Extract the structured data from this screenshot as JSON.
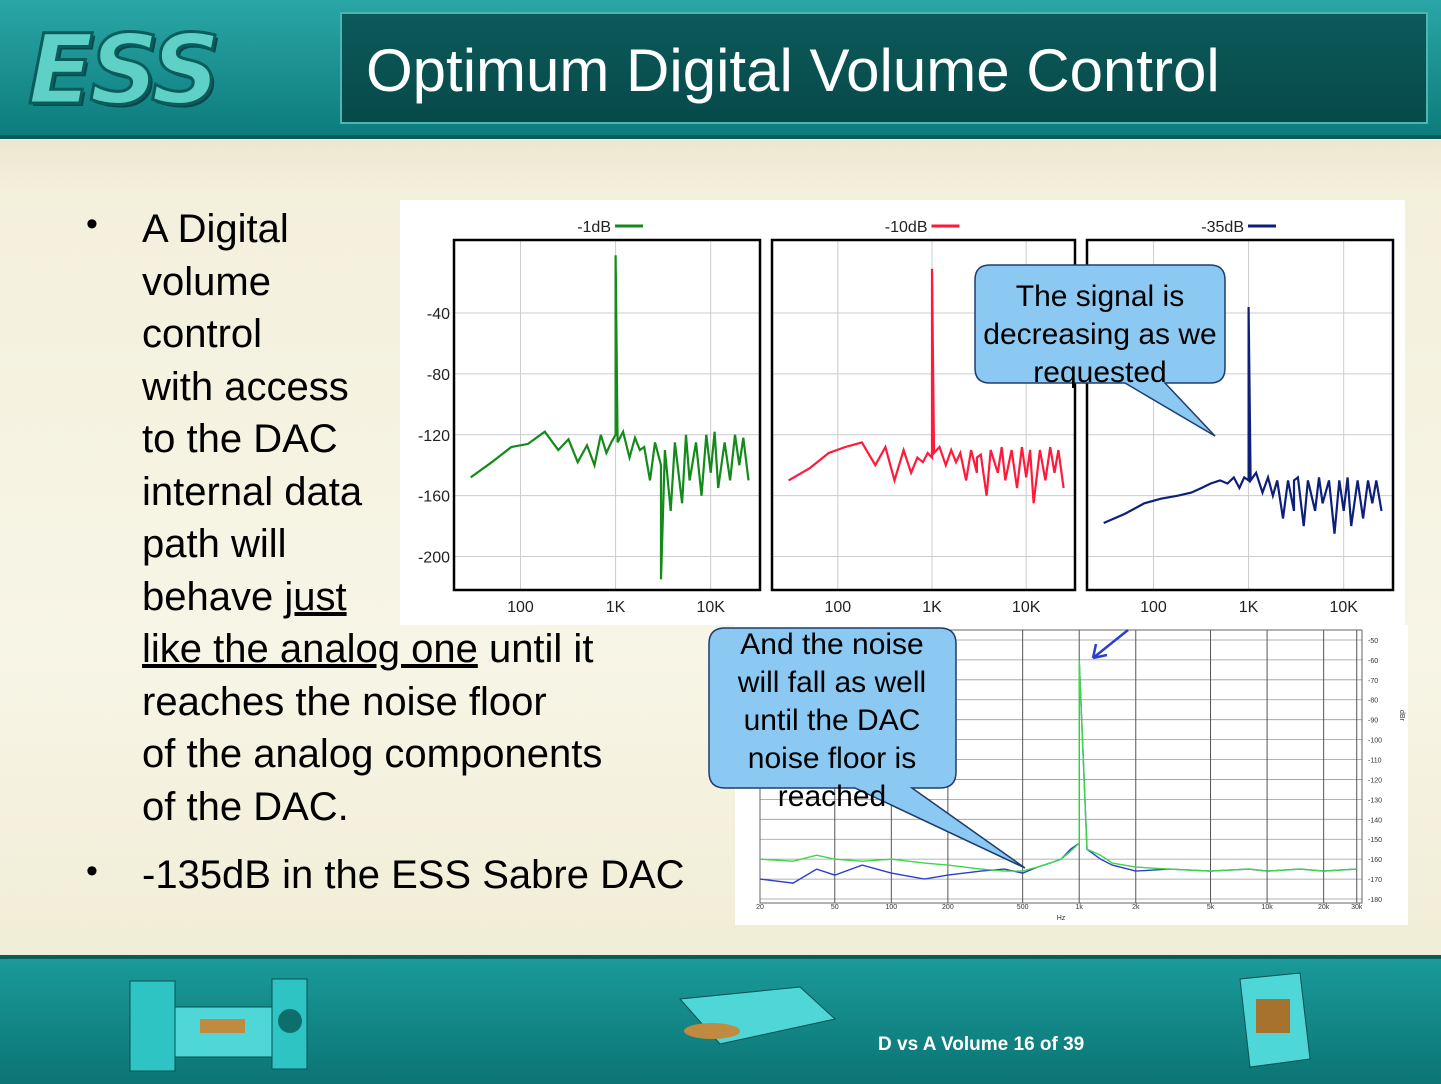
{
  "header": {
    "logo": "ESS",
    "title": "Optimum Digital Volume Control"
  },
  "bullets": [
    {
      "lines": [
        [
          {
            "text": "A Digital"
          }
        ],
        [
          {
            "text": "volume"
          }
        ],
        [
          {
            "text": "control"
          }
        ],
        [
          {
            "text": "with access"
          }
        ],
        [
          {
            "text": "to the DAC"
          }
        ],
        [
          {
            "text": "internal data"
          }
        ],
        [
          {
            "text": "path will"
          }
        ],
        [
          {
            "text": "behave "
          },
          {
            "text": "just",
            "underline": true
          }
        ],
        [
          {
            "text": "like the analog one",
            "underline": true
          },
          {
            "text": " until it"
          }
        ],
        [
          {
            "text": "reaches the noise floor"
          }
        ],
        [
          {
            "text": "of the analog components"
          }
        ],
        [
          {
            "text": "of the DAC."
          }
        ]
      ]
    },
    {
      "lines": [
        [
          {
            "text": "-135dB in the ESS Sabre DAC"
          }
        ]
      ]
    }
  ],
  "callouts": [
    {
      "lines": [
        "The signal is",
        "decreasing as we",
        "requested"
      ]
    },
    {
      "lines": [
        "And the noise",
        "will fall as well",
        "until the DAC",
        "noise floor is",
        "reached"
      ]
    }
  ],
  "footer": {
    "text": "D vs A Volume 16 of 39"
  },
  "chart_data": [
    {
      "type": "line",
      "xscale": "log",
      "grid": true,
      "x": [
        30,
        50,
        80,
        120,
        180,
        250,
        320,
        400,
        500,
        600,
        700,
        800,
        900,
        1000,
        1000,
        1050,
        1200,
        1400,
        1600,
        1800,
        2000,
        2300,
        2600,
        3000,
        3000,
        3300,
        3800,
        4200,
        5000,
        5500,
        6000,
        7000,
        8000,
        9000,
        10000,
        11000,
        12000,
        14000,
        16000,
        18000,
        20000,
        22000,
        25000
      ],
      "series": [
        {
          "name": "-1dB",
          "color": "#138a1a",
          "values": [
            -148,
            -138,
            -128,
            -126,
            -118,
            -130,
            -123,
            -138,
            -127,
            -140,
            -120,
            -132,
            -125,
            -120,
            -2,
            -125,
            -118,
            -135,
            -122,
            -130,
            -128,
            -150,
            -125,
            -140,
            -215,
            -130,
            -170,
            -125,
            -165,
            -120,
            -150,
            -125,
            -160,
            -120,
            -145,
            -118,
            -155,
            -125,
            -150,
            -120,
            -140,
            -122,
            -150
          ]
        }
      ],
      "xlim": [
        20,
        33000
      ],
      "ylim": [
        -222,
        8
      ],
      "xticks": [
        100,
        {
          "value": 1000,
          "label": "1K"
        },
        {
          "value": 10000,
          "label": "10K"
        }
      ],
      "yticks": [
        -40,
        -80,
        -120,
        -160,
        -200
      ]
    },
    {
      "type": "line",
      "xscale": "log",
      "grid": true,
      "x": [
        30,
        50,
        80,
        120,
        180,
        250,
        320,
        400,
        500,
        600,
        700,
        800,
        900,
        1000,
        1000,
        1050,
        1200,
        1400,
        1600,
        1800,
        2000,
        2300,
        2600,
        3000,
        3000,
        3300,
        3800,
        4200,
        5000,
        5500,
        6000,
        7000,
        8000,
        9000,
        10000,
        11000,
        12000,
        14000,
        16000,
        18000,
        20000,
        22000,
        25000
      ],
      "series": [
        {
          "name": "-10dB",
          "color": "#ff1a3c",
          "values": [
            -150,
            -142,
            -132,
            -128,
            -125,
            -140,
            -128,
            -150,
            -130,
            -145,
            -135,
            -138,
            -132,
            -135,
            -11,
            -132,
            -128,
            -140,
            -130,
            -138,
            -132,
            -150,
            -130,
            -145,
            -135,
            -133,
            -160,
            -130,
            -145,
            -128,
            -150,
            -130,
            -155,
            -128,
            -148,
            -130,
            -165,
            -130,
            -150,
            -128,
            -145,
            -130,
            -155
          ]
        }
      ],
      "xlim": [
        20,
        33000
      ],
      "ylim": [
        -222,
        8
      ],
      "xticks": [
        100,
        {
          "value": 1000,
          "label": "1K"
        },
        {
          "value": 10000,
          "label": "10K"
        }
      ]
    },
    {
      "type": "line",
      "xscale": "log",
      "grid": true,
      "x": [
        30,
        50,
        80,
        120,
        180,
        250,
        320,
        400,
        500,
        600,
        700,
        800,
        900,
        1000,
        1000,
        1050,
        1200,
        1400,
        1600,
        1800,
        2000,
        2300,
        2600,
        3000,
        3000,
        3300,
        3800,
        4200,
        5000,
        5500,
        6000,
        7000,
        8000,
        9000,
        10000,
        11000,
        12000,
        14000,
        16000,
        18000,
        20000,
        22000,
        25000
      ],
      "series": [
        {
          "name": "-35dB",
          "color": "#0d1f7a",
          "values": [
            -178,
            -172,
            -165,
            -162,
            -160,
            -158,
            -155,
            -152,
            -150,
            -152,
            -148,
            -155,
            -148,
            -150,
            -36,
            -150,
            -145,
            -158,
            -148,
            -160,
            -150,
            -175,
            -150,
            -170,
            -150,
            -148,
            -180,
            -150,
            -170,
            -148,
            -165,
            -150,
            -185,
            -150,
            -170,
            -148,
            -180,
            -150,
            -175,
            -150,
            -165,
            -150,
            -170
          ]
        }
      ],
      "xlim": [
        20,
        33000
      ],
      "ylim": [
        -222,
        8
      ],
      "xticks": [
        100,
        {
          "value": 1000,
          "label": "1K"
        },
        {
          "value": 10000,
          "label": "10K"
        }
      ]
    },
    {
      "type": "line",
      "xscale": "log",
      "grid": true,
      "xlabel": "Hz",
      "ylabel": "dBr",
      "x": [
        20,
        30,
        40,
        50,
        70,
        100,
        150,
        200,
        300,
        400,
        500,
        600,
        700,
        800,
        900,
        1000,
        1000,
        1100,
        1300,
        1500,
        2000,
        3000,
        5000,
        8000,
        10000,
        15000,
        20000,
        30000
      ],
      "series": [
        {
          "color": "#2a3fd0",
          "values": [
            -170,
            -172,
            -165,
            -168,
            -163,
            -167,
            -170,
            -168,
            -166,
            -165,
            -167,
            -164,
            -162,
            -160,
            -155,
            -152,
            -60,
            -155,
            -160,
            -163,
            -166,
            -165,
            -166,
            -165,
            -166,
            -165,
            -166,
            -165
          ]
        },
        {
          "color": "#3ed64a",
          "values": [
            -160,
            -161,
            -158,
            -160,
            -161,
            -160,
            -162,
            -163,
            -165,
            -166,
            -166,
            -164,
            -162,
            -160,
            -156,
            -152,
            -60,
            -155,
            -158,
            -162,
            -164,
            -165,
            -166,
            -165,
            -166,
            -165,
            -166,
            -165
          ]
        }
      ],
      "xlim": [
        20,
        32000
      ],
      "ylim": [
        -182,
        -45
      ],
      "xticks": [
        20,
        50,
        100,
        200,
        500,
        {
          "value": 1000,
          "label": "1k"
        },
        {
          "value": 2000,
          "label": "2k"
        },
        {
          "value": 5000,
          "label": "5k"
        },
        {
          "value": 10000,
          "label": "10k"
        },
        {
          "value": 20000,
          "label": "20k"
        },
        {
          "value": 30000,
          "label": "30k"
        }
      ],
      "yticks": [
        -50,
        -60,
        -70,
        -80,
        -90,
        -100,
        -110,
        -120,
        -130,
        -140,
        -150,
        -160,
        -170,
        -180
      ]
    }
  ]
}
